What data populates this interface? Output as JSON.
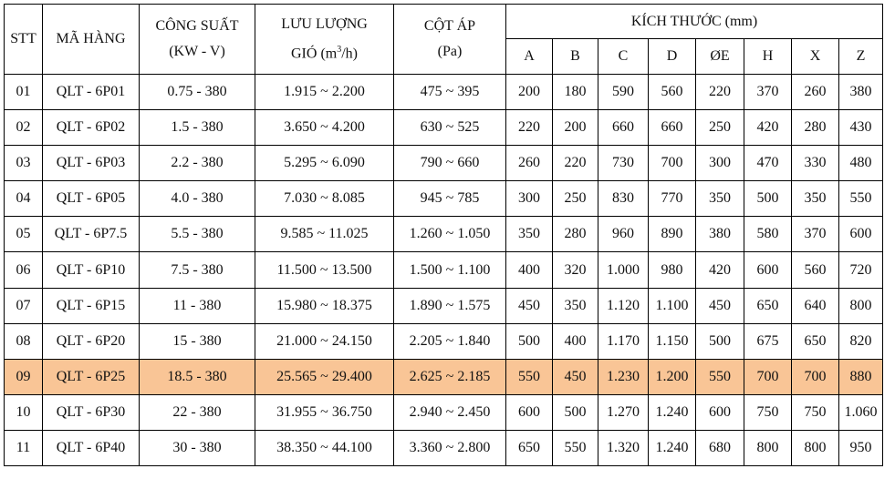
{
  "header": {
    "stt": "STT",
    "ma_hang": "MÃ HÀNG",
    "cong_suat": "CÔNG SUẤT",
    "cong_suat_unit": "(KW - V)",
    "luu_luong": "LƯU LƯỢNG",
    "luu_luong_unit_pre": "GIÓ (m",
    "luu_luong_unit_sup": "3",
    "luu_luong_unit_post": "/h)",
    "cot_ap": "CỘT ÁP",
    "cot_ap_unit": "(Pa)",
    "kich_thuoc": "KÍCH THƯỚC (mm)",
    "dims": [
      "A",
      "B",
      "C",
      "D",
      "ØE",
      "H",
      "X",
      "Z"
    ]
  },
  "highlight_color": "#f9c596",
  "rows": [
    {
      "stt": "01",
      "ma": "QLT - 6P01",
      "cs": "0.75 - 380",
      "ll": "1.915 ~ 2.200",
      "ca": "475 ~ 395",
      "d": [
        "200",
        "180",
        "590",
        "560",
        "220",
        "370",
        "260",
        "380"
      ]
    },
    {
      "stt": "02",
      "ma": "QLT - 6P02",
      "cs": "1.5 - 380",
      "ll": "3.650 ~ 4.200",
      "ca": "630 ~ 525",
      "d": [
        "220",
        "200",
        "660",
        "660",
        "250",
        "420",
        "280",
        "430"
      ]
    },
    {
      "stt": "03",
      "ma": "QLT - 6P03",
      "cs": "2.2 - 380",
      "ll": "5.295 ~ 6.090",
      "ca": "790 ~ 660",
      "d": [
        "260",
        "220",
        "730",
        "700",
        "300",
        "470",
        "330",
        "480"
      ]
    },
    {
      "stt": "04",
      "ma": "QLT - 6P05",
      "cs": "4.0  - 380",
      "ll": "7.030 ~ 8.085",
      "ca": "945 ~ 785",
      "d": [
        "300",
        "250",
        "830",
        "770",
        "350",
        "500",
        "350",
        "550"
      ]
    },
    {
      "stt": "05",
      "ma": "QLT - 6P7.5",
      "cs": "5.5 - 380",
      "ll": "9.585 ~ 11.025",
      "ca": "1.260 ~ 1.050",
      "d": [
        "350",
        "280",
        "960",
        "890",
        "380",
        "580",
        "370",
        "600"
      ]
    },
    {
      "stt": "06",
      "ma": "QLT - 6P10",
      "cs": "7.5 - 380",
      "ll": "11.500 ~ 13.500",
      "ca": "1.500 ~ 1.100",
      "d": [
        "400",
        "320",
        "1.000",
        "980",
        "420",
        "600",
        "560",
        "720"
      ]
    },
    {
      "stt": "07",
      "ma": "QLT - 6P15",
      "cs": "11 - 380",
      "ll": "15.980 ~ 18.375",
      "ca": "1.890 ~ 1.575",
      "d": [
        "450",
        "350",
        "1.120",
        "1.100",
        "450",
        "650",
        "640",
        "800"
      ]
    },
    {
      "stt": "08",
      "ma": "QLT - 6P20",
      "cs": "15 - 380",
      "ll": "21.000 ~ 24.150",
      "ca": "2.205 ~ 1.840",
      "d": [
        "500",
        "400",
        "1.170",
        "1.150",
        "500",
        "675",
        "650",
        "820"
      ]
    },
    {
      "stt": "09",
      "ma": "QLT - 6P25",
      "cs": "18.5 - 380",
      "ll": "25.565 ~ 29.400",
      "ca": "2.625 ~ 2.185",
      "d": [
        "550",
        "450",
        "1.230",
        "1.200",
        "550",
        "700",
        "700",
        "880"
      ],
      "highlight": true
    },
    {
      "stt": "10",
      "ma": "QLT - 6P30",
      "cs": "22 - 380",
      "ll": "31.955 ~ 36.750",
      "ca": "2.940 ~ 2.450",
      "d": [
        "600",
        "500",
        "1.270",
        "1.240",
        "600",
        "750",
        "750",
        "1.060"
      ]
    },
    {
      "stt": "11",
      "ma": "QLT - 6P40",
      "cs": "30 - 380",
      "ll": "38.350 ~ 44.100",
      "ca": "3.360 ~ 2.800",
      "d": [
        "650",
        "550",
        "1.320",
        "1.240",
        "680",
        "800",
        "800",
        "950"
      ]
    }
  ]
}
